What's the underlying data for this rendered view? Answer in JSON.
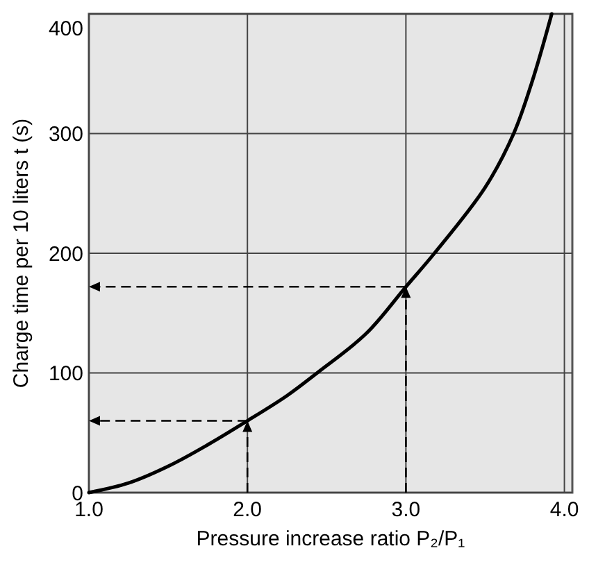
{
  "chart_data": {
    "type": "line",
    "xlabel": "Pressure increase ratio P₂/P₁",
    "ylabel": "Charge time per 10 liters t (s)",
    "xlim": [
      1.0,
      4.05
    ],
    "ylim": [
      0,
      400
    ],
    "xticks": [
      {
        "value": 1,
        "label": "1.0"
      },
      {
        "value": 2,
        "label": "2.0"
      },
      {
        "value": 3,
        "label": "3.0"
      },
      {
        "value": 4,
        "label": "4.0"
      }
    ],
    "yticks": [
      0,
      100,
      200,
      300,
      400
    ],
    "grid": true,
    "series": [
      {
        "color": "#000000",
        "x": [
          1,
          1.25,
          1.5,
          1.75,
          2,
          2.25,
          2.44,
          2.75,
          3,
          3.18,
          3.5,
          3.68,
          3.8,
          3.92
        ],
        "values": [
          0,
          8,
          22,
          40,
          60,
          81,
          100,
          133,
          172,
          200,
          255,
          300,
          345,
          400
        ]
      }
    ],
    "ref_lines": [
      {
        "axis": "x",
        "value": 2,
        "color": "#000000",
        "line_style": "dashed"
      },
      {
        "axis": "x",
        "value": 3,
        "color": "#000000",
        "line_style": "dashed"
      }
    ]
  }
}
